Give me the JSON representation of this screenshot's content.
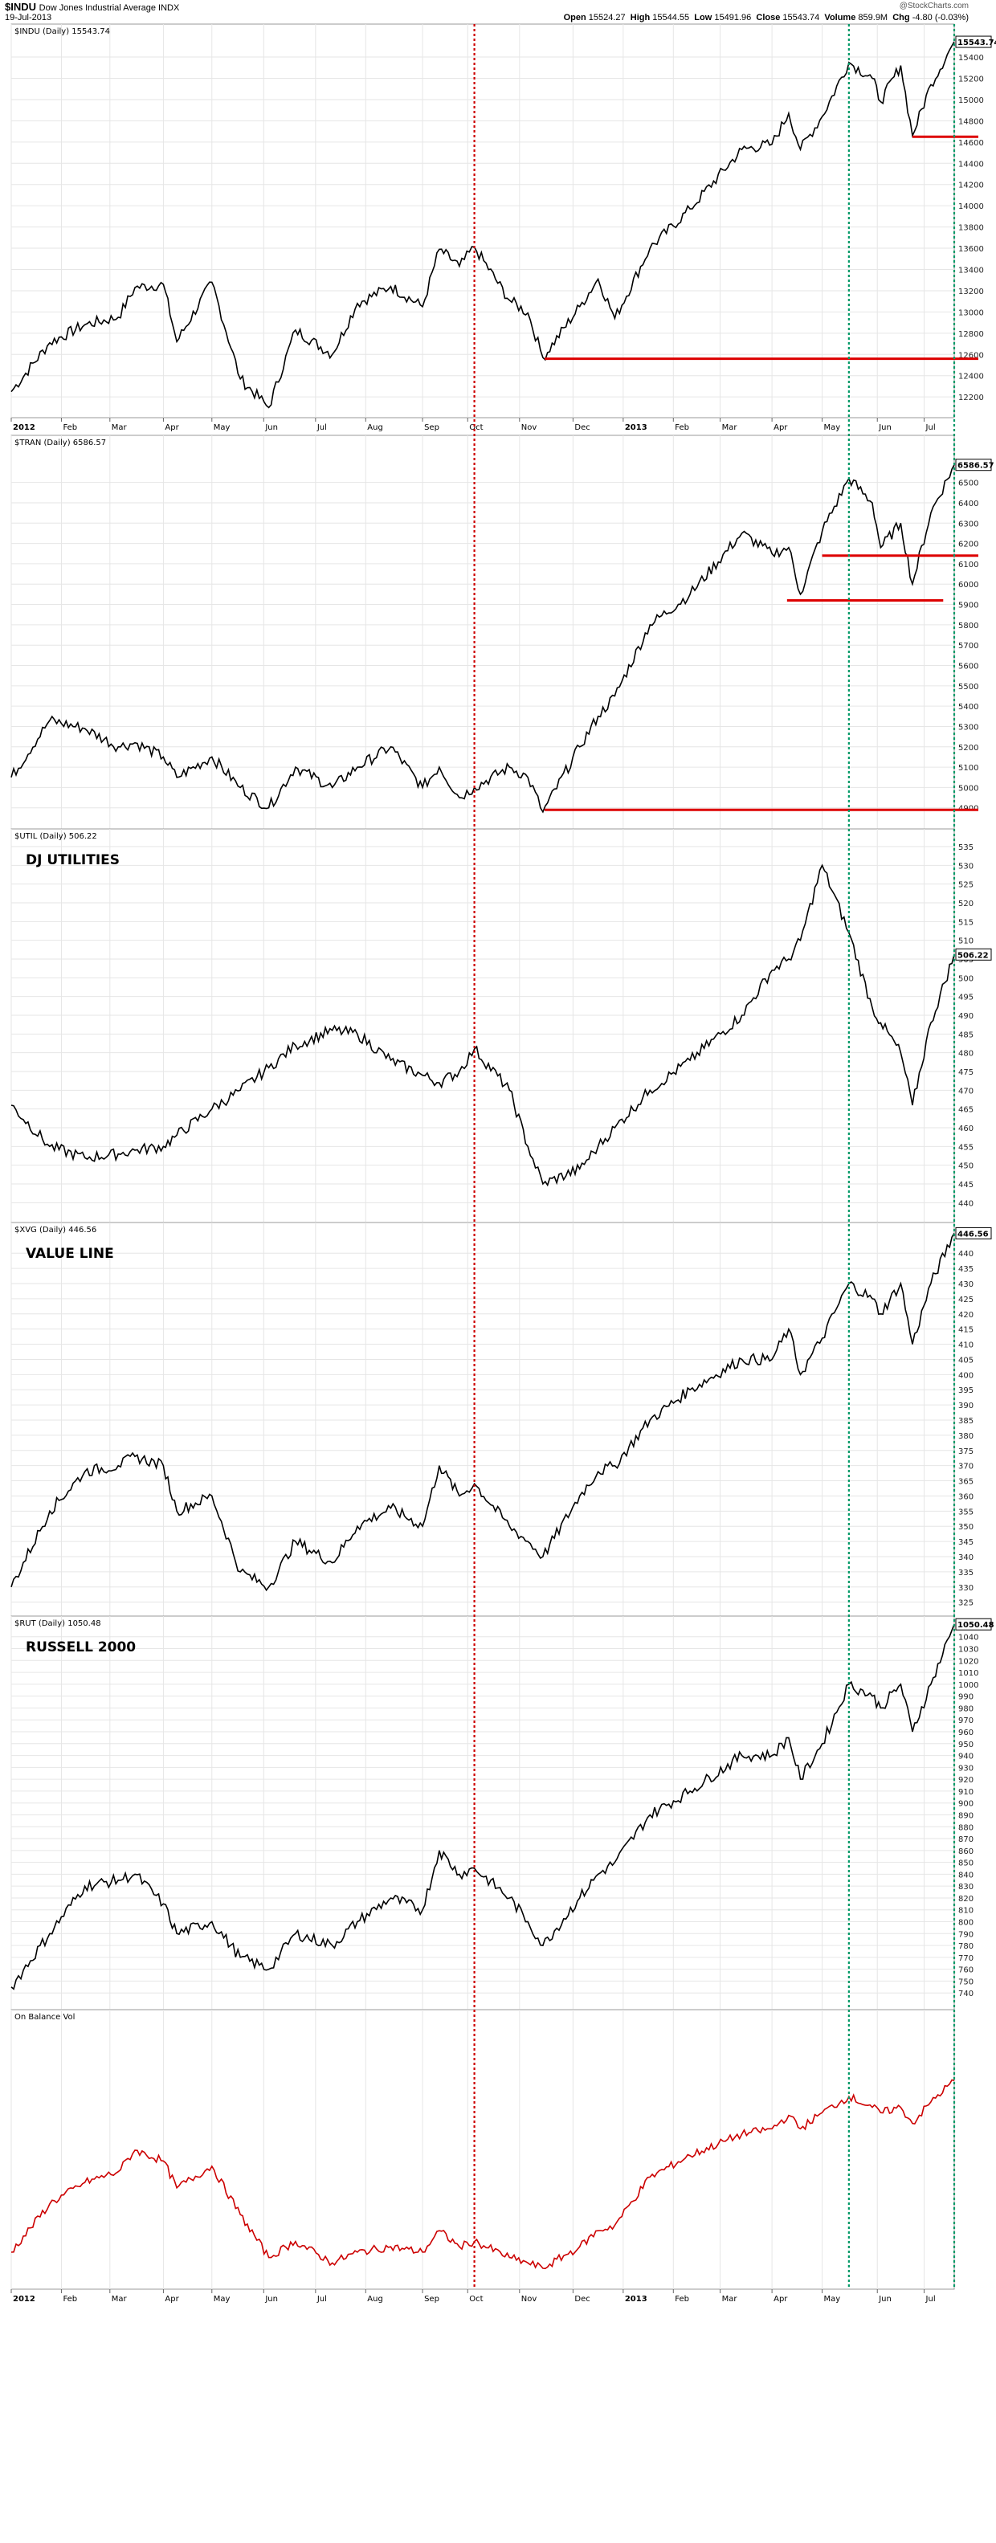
{
  "header": {
    "symbol": "$INDU",
    "name": "Dow Jones Industrial Average INDX",
    "date": "19-Jul-2013",
    "brand": "@StockCharts.com",
    "quote": {
      "open_label": "Open",
      "open": "15524.27",
      "high_label": "High",
      "high": "15544.55",
      "low_label": "Low",
      "low": "15491.96",
      "close_label": "Close",
      "close": "15543.74",
      "volume_label": "Volume",
      "volume": "859.9M",
      "chg_label": "Chg",
      "chg": "-4.80 (-0.03%)"
    }
  },
  "colors": {
    "price_line": "#000000",
    "obv_line": "#cc0000",
    "support_line": "#dd0000",
    "red_marker": "#cc0000",
    "green_marker": "#009966",
    "grid": "#e6e6e6",
    "frame": "#999999"
  },
  "markers": [
    {
      "date": "2012-10-05",
      "color": "red",
      "style": "dotted"
    },
    {
      "date": "2013-05-17",
      "color": "green",
      "style": "dotted"
    },
    {
      "date": "2013-07-19",
      "color": "green",
      "style": "dotted"
    }
  ],
  "x_axis": {
    "start": "2012-01-02",
    "end": "2013-07-19",
    "ticks": [
      {
        "date": "2012-01-02",
        "label": "2012",
        "bold": true
      },
      {
        "date": "2012-02-01",
        "label": "Feb"
      },
      {
        "date": "2012-03-01",
        "label": "Mar"
      },
      {
        "date": "2012-04-02",
        "label": "Apr"
      },
      {
        "date": "2012-05-01",
        "label": "May"
      },
      {
        "date": "2012-06-01",
        "label": "Jun"
      },
      {
        "date": "2012-07-02",
        "label": "Jul"
      },
      {
        "date": "2012-08-01",
        "label": "Aug"
      },
      {
        "date": "2012-09-04",
        "label": "Sep"
      },
      {
        "date": "2012-10-01",
        "label": "Oct"
      },
      {
        "date": "2012-11-01",
        "label": "Nov"
      },
      {
        "date": "2012-12-03",
        "label": "Dec"
      },
      {
        "date": "2013-01-02",
        "label": "2013",
        "bold": true
      },
      {
        "date": "2013-02-01",
        "label": "Feb"
      },
      {
        "date": "2013-03-01",
        "label": "Mar"
      },
      {
        "date": "2013-04-01",
        "label": "Apr"
      },
      {
        "date": "2013-05-01",
        "label": "May"
      },
      {
        "date": "2013-06-03",
        "label": "Jun"
      },
      {
        "date": "2013-07-01",
        "label": "Jul"
      }
    ]
  },
  "chart_data": [
    {
      "type": "line",
      "legend": "$INDU (Daily) 15543.74",
      "title": "",
      "last_label": "15543.74",
      "ylim": [
        12050,
        15650
      ],
      "ticks": [
        12200,
        12400,
        12600,
        12800,
        13000,
        13200,
        13400,
        13600,
        13800,
        14000,
        14200,
        14400,
        14600,
        14800,
        15000,
        15200,
        15400
      ],
      "support_lines": [
        {
          "from": "2012-11-16",
          "to": "2013-07-19",
          "y": 12560
        },
        {
          "from": "2013-06-24",
          "to": "2013-07-19",
          "y": 14650
        }
      ],
      "series": [
        {
          "x": [
            "2012-01-02",
            "2012-01-25",
            "2012-02-15",
            "2012-03-06",
            "2012-03-16",
            "2012-04-02",
            "2012-04-10",
            "2012-05-01",
            "2012-05-18",
            "2012-06-04",
            "2012-06-20",
            "2012-07-12",
            "2012-07-27",
            "2012-08-16",
            "2012-09-04",
            "2012-09-14",
            "2012-09-26",
            "2012-10-05",
            "2012-10-26",
            "2012-11-06",
            "2012-11-15",
            "2012-12-07",
            "2012-12-18",
            "2012-12-28",
            "2013-01-18",
            "2013-02-11",
            "2013-03-14",
            "2013-04-01",
            "2013-04-11",
            "2013-04-18",
            "2013-05-01",
            "2013-05-17",
            "2013-05-31",
            "2013-06-05",
            "2013-06-17",
            "2013-06-24",
            "2013-07-05",
            "2013-07-19"
          ],
          "values": [
            12250,
            12710,
            12880,
            12950,
            13230,
            13260,
            12720,
            13280,
            12370,
            12100,
            12830,
            12600,
            13080,
            13240,
            13050,
            13590,
            13430,
            13610,
            13110,
            12990,
            12570,
            13050,
            13310,
            12940,
            13600,
            13970,
            14530,
            14580,
            14870,
            14530,
            14840,
            15350,
            15200,
            14980,
            15320,
            14660,
            15140,
            15543.74
          ]
        }
      ]
    },
    {
      "type": "line",
      "legend": "$TRAN (Daily) 6586.57",
      "title": "",
      "last_label": "6586.57",
      "ylim": [
        4820,
        6700
      ],
      "ticks": [
        4900,
        5000,
        5100,
        5200,
        5300,
        5400,
        5500,
        5600,
        5700,
        5800,
        5900,
        6000,
        6100,
        6200,
        6300,
        6400,
        6500
      ],
      "support_lines": [
        {
          "from": "2012-11-16",
          "to": "2013-07-19",
          "y": 4890
        },
        {
          "from": "2013-04-10",
          "to": "2013-06-28",
          "y": 5920
        },
        {
          "from": "2013-05-01",
          "to": "2013-07-19",
          "y": 6140
        }
      ],
      "series": [
        {
          "x": [
            "2012-01-02",
            "2012-01-25",
            "2012-02-15",
            "2012-03-06",
            "2012-03-16",
            "2012-04-02",
            "2012-04-10",
            "2012-05-01",
            "2012-05-18",
            "2012-06-04",
            "2012-06-20",
            "2012-07-12",
            "2012-07-27",
            "2012-08-16",
            "2012-09-04",
            "2012-09-14",
            "2012-09-26",
            "2012-10-05",
            "2012-10-26",
            "2012-11-06",
            "2012-11-15",
            "2012-12-07",
            "2012-12-18",
            "2012-12-28",
            "2013-01-18",
            "2013-02-11",
            "2013-03-14",
            "2013-04-01",
            "2013-04-11",
            "2013-04-18",
            "2013-05-01",
            "2013-05-17",
            "2013-05-31",
            "2013-06-05",
            "2013-06-17",
            "2013-06-24",
            "2013-07-05",
            "2013-07-19"
          ],
          "values": [
            5050,
            5330,
            5290,
            5200,
            5220,
            5150,
            5050,
            5150,
            5000,
            4900,
            5100,
            5000,
            5100,
            5200,
            5000,
            5100,
            4950,
            5000,
            5100,
            5050,
            4880,
            5200,
            5350,
            5450,
            5800,
            5950,
            6250,
            6150,
            6180,
            5950,
            6260,
            6520,
            6400,
            6180,
            6300,
            6000,
            6350,
            6586.57
          ]
        }
      ]
    },
    {
      "type": "line",
      "legend": "$UTIL (Daily) 506.22",
      "title": "DJ UTILITIES",
      "last_label": "506.22",
      "ylim": [
        436,
        538
      ],
      "ticks": [
        440,
        445,
        450,
        455,
        460,
        465,
        470,
        475,
        480,
        485,
        490,
        495,
        500,
        505,
        510,
        515,
        520,
        525,
        530,
        535
      ],
      "support_lines": [],
      "series": [
        {
          "x": [
            "2012-01-02",
            "2012-01-25",
            "2012-02-15",
            "2012-03-06",
            "2012-03-16",
            "2012-04-02",
            "2012-04-10",
            "2012-05-01",
            "2012-05-18",
            "2012-06-04",
            "2012-06-20",
            "2012-07-12",
            "2012-07-27",
            "2012-08-16",
            "2012-09-04",
            "2012-09-14",
            "2012-09-26",
            "2012-10-05",
            "2012-10-26",
            "2012-11-06",
            "2012-11-15",
            "2012-12-07",
            "2012-12-18",
            "2012-12-28",
            "2013-01-18",
            "2013-02-11",
            "2013-03-14",
            "2013-04-01",
            "2013-04-11",
            "2013-04-18",
            "2013-05-01",
            "2013-05-17",
            "2013-05-31",
            "2013-06-05",
            "2013-06-17",
            "2013-06-24",
            "2013-07-05",
            "2013-07-19"
          ],
          "values": [
            466,
            455,
            452,
            453,
            454,
            455,
            458,
            465,
            470,
            476,
            482,
            486,
            485,
            478,
            474,
            472,
            475,
            481,
            470,
            455,
            445,
            449,
            455,
            460,
            470,
            478,
            490,
            502,
            505,
            510,
            530,
            512,
            492,
            488,
            480,
            466,
            488,
            506.22
          ]
        }
      ]
    },
    {
      "type": "line",
      "legend": "$XVG (Daily) 446.56",
      "title": "VALUE LINE",
      "last_label": "446.56",
      "ylim": [
        322,
        448
      ],
      "ticks": [
        325,
        330,
        335,
        340,
        345,
        350,
        355,
        360,
        365,
        370,
        375,
        380,
        385,
        390,
        395,
        400,
        405,
        410,
        415,
        420,
        425,
        430,
        435,
        440
      ],
      "support_lines": [],
      "series": [
        {
          "x": [
            "2012-01-02",
            "2012-01-25",
            "2012-02-15",
            "2012-03-06",
            "2012-03-16",
            "2012-04-02",
            "2012-04-10",
            "2012-05-01",
            "2012-05-18",
            "2012-06-04",
            "2012-06-20",
            "2012-07-12",
            "2012-07-27",
            "2012-08-16",
            "2012-09-04",
            "2012-09-14",
            "2012-09-26",
            "2012-10-05",
            "2012-10-26",
            "2012-11-06",
            "2012-11-15",
            "2012-12-07",
            "2012-12-18",
            "2012-12-28",
            "2013-01-18",
            "2013-02-11",
            "2013-03-14",
            "2013-04-01",
            "2013-04-11",
            "2013-04-18",
            "2013-05-01",
            "2013-05-17",
            "2013-05-31",
            "2013-06-05",
            "2013-06-17",
            "2013-06-24",
            "2013-07-05",
            "2013-07-19"
          ],
          "values": [
            330,
            355,
            368,
            370,
            373,
            370,
            355,
            360,
            335,
            330,
            345,
            338,
            350,
            356,
            350,
            370,
            360,
            364,
            350,
            345,
            340,
            360,
            368,
            370,
            385,
            395,
            405,
            405,
            415,
            400,
            412,
            430,
            425,
            420,
            430,
            410,
            430,
            446.56
          ]
        }
      ]
    },
    {
      "type": "line",
      "legend": "$RUT (Daily) 1050.48",
      "title": "RUSSELL 2000",
      "last_label": "1050.48",
      "ylim": [
        730,
        1052
      ],
      "ticks": [
        740,
        750,
        760,
        770,
        780,
        790,
        800,
        810,
        820,
        830,
        840,
        850,
        860,
        870,
        880,
        890,
        900,
        910,
        920,
        930,
        940,
        950,
        960,
        970,
        980,
        990,
        1000,
        1010,
        1020,
        1030,
        1040
      ],
      "support_lines": [],
      "series": [
        {
          "x": [
            "2012-01-02",
            "2012-01-25",
            "2012-02-15",
            "2012-03-06",
            "2012-03-16",
            "2012-04-02",
            "2012-04-10",
            "2012-05-01",
            "2012-05-18",
            "2012-06-04",
            "2012-06-20",
            "2012-07-12",
            "2012-07-27",
            "2012-08-16",
            "2012-09-04",
            "2012-09-14",
            "2012-09-26",
            "2012-10-05",
            "2012-10-26",
            "2012-11-06",
            "2012-11-15",
            "2012-12-07",
            "2012-12-18",
            "2012-12-28",
            "2013-01-18",
            "2013-02-11",
            "2013-03-14",
            "2013-04-01",
            "2013-04-11",
            "2013-04-18",
            "2013-05-01",
            "2013-05-17",
            "2013-05-31",
            "2013-06-05",
            "2013-06-17",
            "2013-06-24",
            "2013-07-05",
            "2013-07-19"
          ],
          "values": [
            745,
            790,
            830,
            835,
            840,
            815,
            790,
            800,
            770,
            760,
            790,
            780,
            800,
            820,
            810,
            860,
            840,
            845,
            820,
            800,
            780,
            820,
            840,
            850,
            890,
            910,
            940,
            940,
            955,
            920,
            950,
            1000,
            990,
            980,
            1000,
            960,
            1000,
            1050.48
          ]
        }
      ]
    },
    {
      "type": "line",
      "legend": "On Balance Vol",
      "title": "",
      "last_label": "",
      "ylim": [
        0,
        100
      ],
      "ticks": [],
      "support_lines": [],
      "series": [
        {
          "x": [
            "2012-01-02",
            "2012-01-25",
            "2012-02-15",
            "2012-03-06",
            "2012-03-16",
            "2012-04-02",
            "2012-04-10",
            "2012-05-01",
            "2012-05-18",
            "2012-06-04",
            "2012-06-20",
            "2012-07-12",
            "2012-07-27",
            "2012-08-16",
            "2012-09-04",
            "2012-09-14",
            "2012-09-26",
            "2012-10-05",
            "2012-10-26",
            "2012-11-06",
            "2012-11-15",
            "2012-12-07",
            "2012-12-18",
            "2012-12-28",
            "2013-01-18",
            "2013-02-11",
            "2013-03-14",
            "2013-04-01",
            "2013-04-11",
            "2013-04-18",
            "2013-05-01",
            "2013-05-17",
            "2013-05-31",
            "2013-06-05",
            "2013-06-17",
            "2013-06-24",
            "2013-07-05",
            "2013-07-19"
          ],
          "values": [
            12,
            30,
            38,
            42,
            50,
            46,
            36,
            44,
            26,
            10,
            16,
            8,
            12,
            14,
            12,
            20,
            14,
            16,
            10,
            8,
            6,
            14,
            20,
            22,
            40,
            48,
            56,
            58,
            63,
            58,
            64,
            70,
            66,
            64,
            66,
            60,
            68,
            76
          ]
        }
      ]
    }
  ]
}
